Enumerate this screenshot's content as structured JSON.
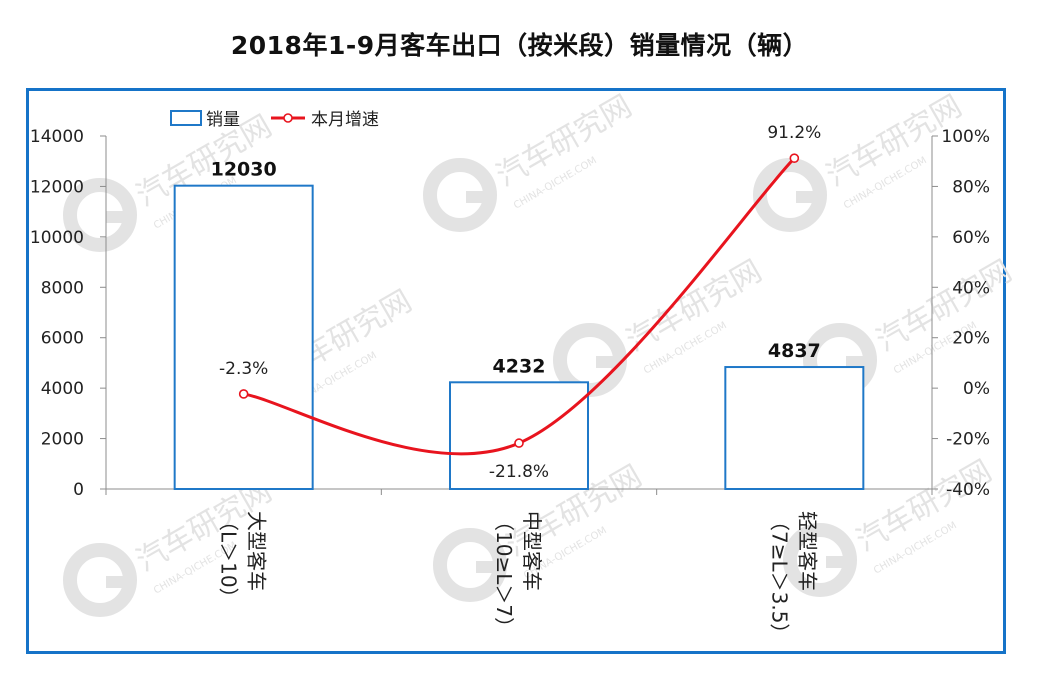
{
  "title": "2018年1-9月客车出口（按米段）销量情况（辆）",
  "colors": {
    "frame": "#1573c8",
    "bar_border": "#1f78c8",
    "line": "#e8141e",
    "watermark": "#e3e3e3"
  },
  "watermark": {
    "text": "汽车研究网",
    "subtext": "CHINA-QICHE.COM"
  },
  "chart_data": {
    "type": "bar",
    "categories": [
      "大型客车（L＞10）",
      "中型客车（10≥L＞7）",
      "轻型客车（7≥L＞3.5）"
    ],
    "category_lines": [
      [
        "大型客车",
        "（L＞10）"
      ],
      [
        "中型客车",
        "（10≥L＞7）"
      ],
      [
        "轻型客车",
        "（7≥L＞3.5）"
      ]
    ],
    "series": [
      {
        "name": "销量",
        "type": "bar",
        "axis": "left",
        "values": [
          12030,
          4232,
          4837
        ],
        "labels": [
          "12030",
          "4232",
          "4837"
        ]
      },
      {
        "name": "本月增速",
        "type": "line",
        "axis": "right",
        "smooth": true,
        "values": [
          -2.3,
          -21.8,
          91.2
        ],
        "labels": [
          "-2.3%",
          "-21.8%",
          "91.2%"
        ]
      }
    ],
    "y_left": {
      "lim": [
        0,
        14000
      ],
      "ticks": [
        "0",
        "2000",
        "4000",
        "6000",
        "8000",
        "10000",
        "12000",
        "14000"
      ]
    },
    "y_right": {
      "lim": [
        -40,
        100
      ],
      "ticks": [
        "-40%",
        "-20%",
        "0%",
        "20%",
        "40%",
        "60%",
        "80%",
        "100%"
      ]
    },
    "legend": {
      "position": "top-left",
      "items": [
        "销量",
        "本月增速"
      ]
    },
    "grid": false
  }
}
